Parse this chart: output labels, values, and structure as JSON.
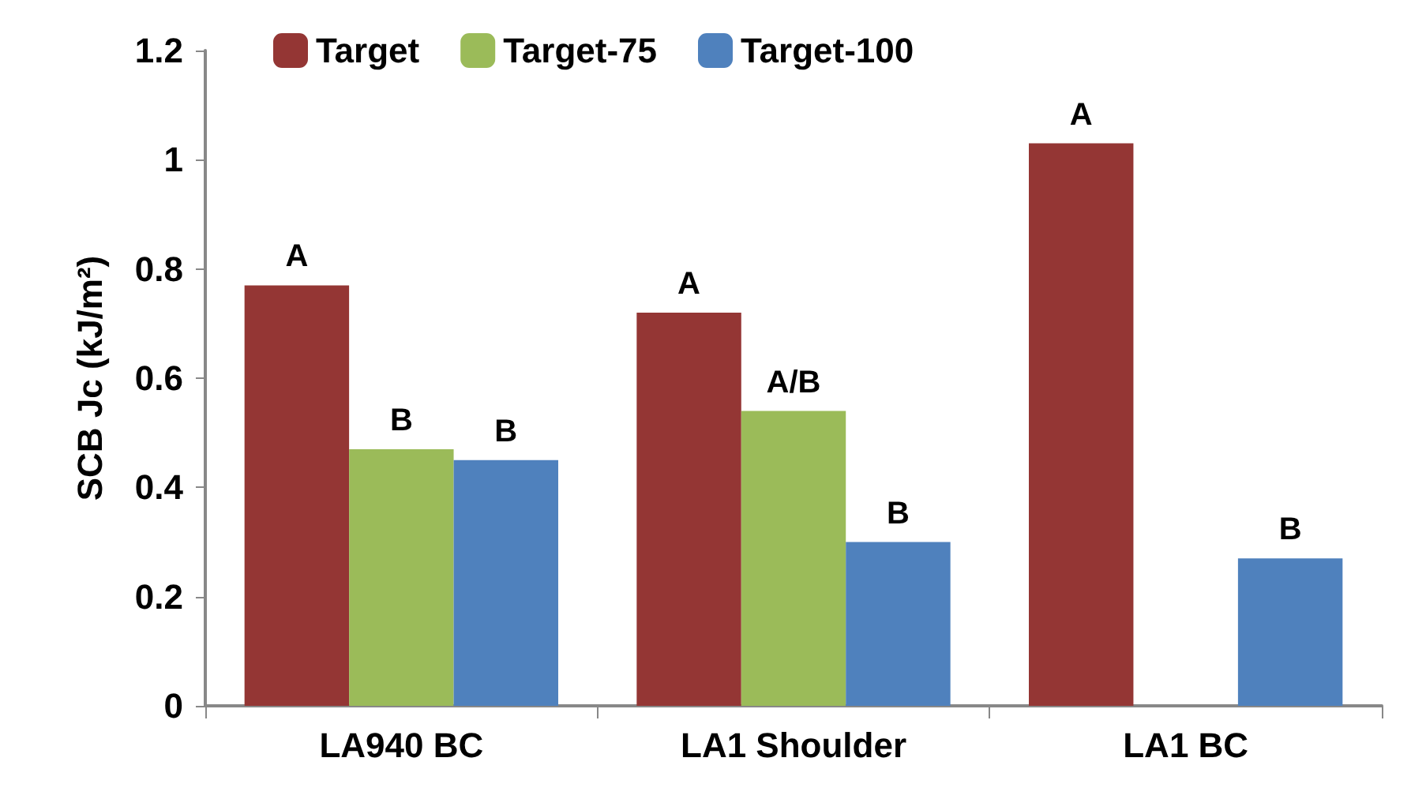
{
  "chart_data": {
    "type": "bar",
    "ylabel": "SCB Jc (kJ/m²)",
    "categories": [
      "LA940 BC",
      "LA1 Shoulder",
      "LA1 BC"
    ],
    "series": [
      {
        "name": "Target",
        "color": "#943634",
        "values": [
          0.77,
          0.72,
          1.03
        ],
        "value_labels": [
          "A",
          "A",
          "A"
        ]
      },
      {
        "name": "Target-75",
        "color": "#9bbb59",
        "values": [
          0.47,
          0.54,
          null
        ],
        "value_labels": [
          "B",
          "A/B",
          null
        ]
      },
      {
        "name": "Target-100",
        "color": "#4f81bd",
        "values": [
          0.45,
          0.3,
          0.27
        ],
        "value_labels": [
          "B",
          "B",
          "B"
        ]
      }
    ],
    "ylim": [
      0,
      1.2
    ],
    "yticks": [
      0,
      0.2,
      0.4,
      0.6,
      0.8,
      1,
      1.2
    ],
    "grid": false,
    "legend": "top left"
  }
}
